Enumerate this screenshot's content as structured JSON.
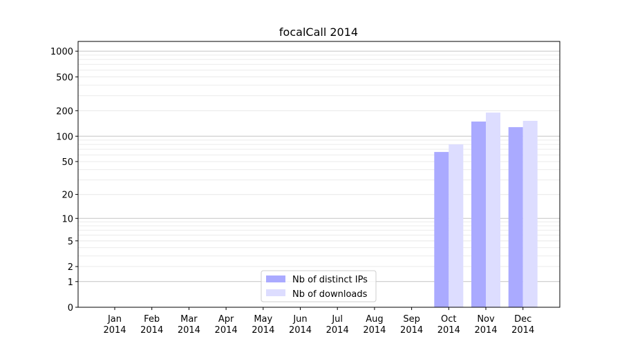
{
  "chart_data": {
    "type": "bar",
    "title": "focalCall 2014",
    "xlabel": "",
    "ylabel": "",
    "yscale": "symlog",
    "ylim": [
      0,
      1300
    ],
    "grid": true,
    "legend_position": "bottom-center",
    "categories": [
      "Jan\n2014",
      "Feb\n2014",
      "Mar\n2014",
      "Apr\n2014",
      "May\n2014",
      "Jun\n2014",
      "Jul\n2014",
      "Aug\n2014",
      "Sep\n2014",
      "Oct\n2014",
      "Nov\n2014",
      "Dec\n2014"
    ],
    "y_ticks": [
      0,
      1,
      2,
      5,
      10,
      20,
      50,
      100,
      200,
      500,
      1000
    ],
    "y_tick_labels": [
      "0",
      "1",
      "2",
      "5",
      "10",
      "20",
      "50",
      "100",
      "200",
      "500",
      "1000"
    ],
    "series": [
      {
        "name": "Nb of distinct IPs",
        "color": "#aaaaff",
        "values": [
          0,
          0,
          0,
          0,
          0,
          0,
          0,
          0,
          0,
          65,
          149,
          128
        ]
      },
      {
        "name": "Nb of downloads",
        "color": "#ddddff",
        "values": [
          0,
          0,
          0,
          0,
          0,
          0,
          0,
          0,
          0,
          80,
          190,
          152
        ]
      }
    ]
  }
}
